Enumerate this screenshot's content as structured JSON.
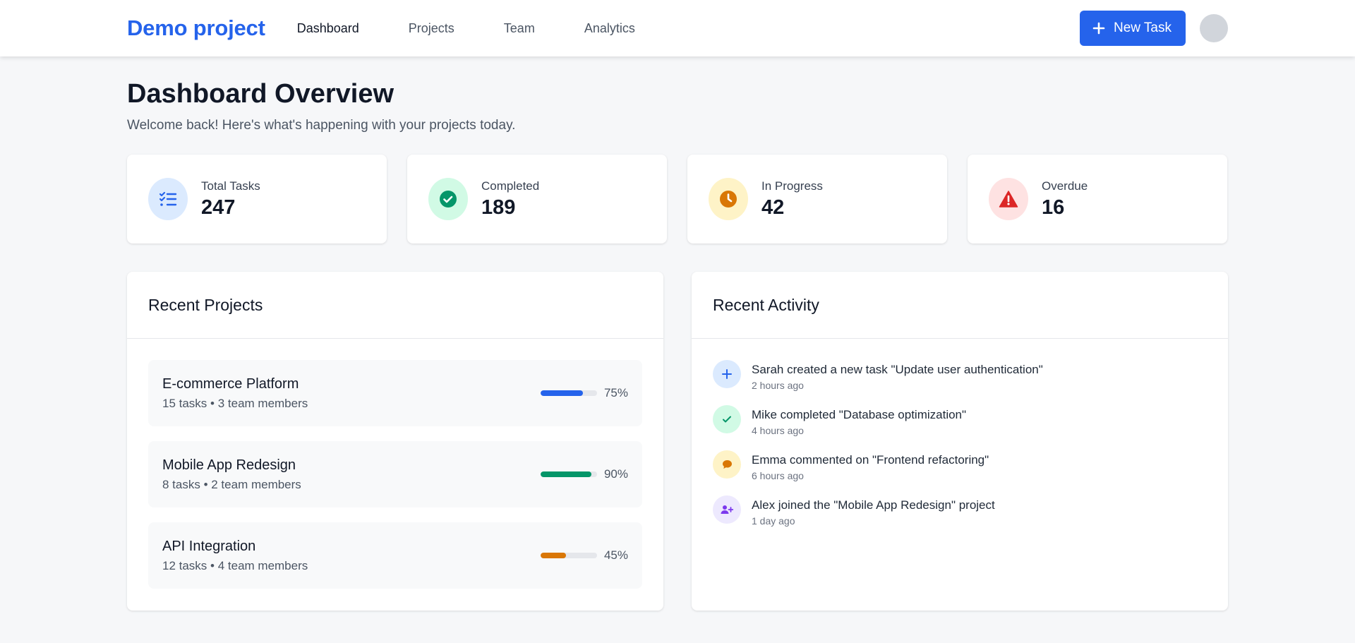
{
  "header": {
    "brand": "Demo project",
    "nav": [
      {
        "label": "Dashboard",
        "active": true
      },
      {
        "label": "Projects",
        "active": false
      },
      {
        "label": "Team",
        "active": false
      },
      {
        "label": "Analytics",
        "active": false
      }
    ],
    "new_task_label": "New Task"
  },
  "page": {
    "title": "Dashboard Overview",
    "subtitle": "Welcome back! Here's what's happening with your projects today."
  },
  "stats": [
    {
      "label": "Total Tasks",
      "value": "247",
      "icon": "task-list-icon",
      "bg": "#dbeafe",
      "color": "#2563eb"
    },
    {
      "label": "Completed",
      "value": "189",
      "icon": "check-circle-icon",
      "bg": "#d1fae5",
      "color": "#059669"
    },
    {
      "label": "In Progress",
      "value": "42",
      "icon": "clock-icon",
      "bg": "#fef3c7",
      "color": "#d97706"
    },
    {
      "label": "Overdue",
      "value": "16",
      "icon": "warning-icon",
      "bg": "#fee2e2",
      "color": "#dc2626"
    }
  ],
  "recent_projects": {
    "title": "Recent Projects",
    "items": [
      {
        "name": "E-commerce Platform",
        "meta": "15 tasks • 3 team members",
        "progress": 75,
        "progress_label": "75%",
        "color": "#2563eb"
      },
      {
        "name": "Mobile App Redesign",
        "meta": "8 tasks • 2 team members",
        "progress": 90,
        "progress_label": "90%",
        "color": "#059669"
      },
      {
        "name": "API Integration",
        "meta": "12 tasks • 4 team members",
        "progress": 45,
        "progress_label": "45%",
        "color": "#d97706"
      }
    ]
  },
  "recent_activity": {
    "title": "Recent Activity",
    "items": [
      {
        "text": "Sarah created a new task \"Update user authentication\"",
        "time": "2 hours ago",
        "icon": "plus-icon",
        "bg": "#dbeafe",
        "color": "#2563eb"
      },
      {
        "text": "Mike completed \"Database optimization\"",
        "time": "4 hours ago",
        "icon": "check-icon",
        "bg": "#d1fae5",
        "color": "#059669"
      },
      {
        "text": "Emma commented on \"Frontend refactoring\"",
        "time": "6 hours ago",
        "icon": "comment-icon",
        "bg": "#fef3c7",
        "color": "#d97706"
      },
      {
        "text": "Alex joined the \"Mobile App Redesign\" project",
        "time": "1 day ago",
        "icon": "user-plus-icon",
        "bg": "#ede9fe",
        "color": "#7c3aed"
      }
    ]
  }
}
